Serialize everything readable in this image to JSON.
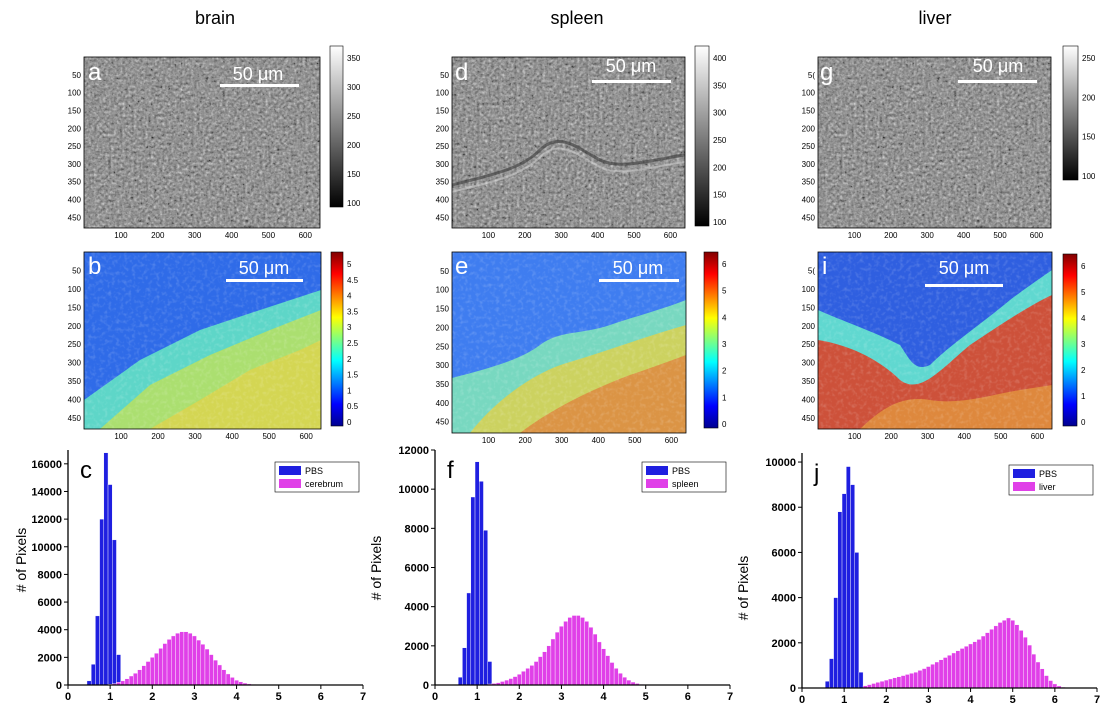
{
  "columns": [
    {
      "title": "brain",
      "top": {
        "panel": "a",
        "scalebar": "50 μm",
        "xticks": [
          "100",
          "200",
          "300",
          "400",
          "500",
          "600"
        ],
        "yticks": [
          "50",
          "100",
          "150",
          "200",
          "250",
          "300",
          "350",
          "400",
          "450"
        ],
        "cbar_ticks": [
          "350",
          "300",
          "250",
          "200",
          "150",
          "100"
        ]
      },
      "mid": {
        "panel": "b",
        "scalebar": "50 μm",
        "xticks": [
          "100",
          "200",
          "300",
          "400",
          "500",
          "600"
        ],
        "yticks": [
          "50",
          "100",
          "150",
          "200",
          "250",
          "300",
          "350",
          "400",
          "450"
        ],
        "cbar_ticks": [
          "5",
          "4.5",
          "4",
          "3.5",
          "3",
          "2.5",
          "2",
          "1.5",
          "1",
          "0.5",
          "0"
        ]
      }
    },
    {
      "title": "spleen",
      "top": {
        "panel": "d",
        "scalebar": "50 μm",
        "xticks": [
          "100",
          "200",
          "300",
          "400",
          "500",
          "600"
        ],
        "yticks": [
          "50",
          "100",
          "150",
          "200",
          "250",
          "300",
          "350",
          "400",
          "450"
        ],
        "cbar_ticks": [
          "400",
          "350",
          "300",
          "250",
          "200",
          "150",
          "100"
        ]
      },
      "mid": {
        "panel": "e",
        "scalebar": "50 μm",
        "xticks": [
          "100",
          "200",
          "300",
          "400",
          "500",
          "600"
        ],
        "yticks": [
          "50",
          "100",
          "150",
          "200",
          "250",
          "300",
          "350",
          "400",
          "450"
        ],
        "cbar_ticks": [
          "6",
          "5",
          "4",
          "3",
          "2",
          "1",
          "0"
        ]
      }
    },
    {
      "title": "liver",
      "top": {
        "panel": "g",
        "scalebar": "50 μm",
        "xticks": [
          "100",
          "200",
          "300",
          "400",
          "500",
          "600"
        ],
        "yticks": [
          "5(",
          "100",
          "150",
          "200",
          "250",
          "300",
          "350",
          "400",
          "450"
        ],
        "cbar_ticks": [
          "250",
          "200",
          "150",
          "100"
        ]
      },
      "mid": {
        "panel": "i",
        "scalebar": "50 μm",
        "xticks": [
          "100",
          "200",
          "300",
          "400",
          "500",
          "600"
        ],
        "yticks": [
          "5(",
          "100",
          "150",
          "200",
          "250",
          "300",
          "350",
          "400",
          "450"
        ],
        "cbar_ticks": [
          "6",
          "5",
          "4",
          "3",
          "2",
          "1",
          "0"
        ]
      }
    }
  ],
  "colors": {
    "pbs": "#1f1fe0",
    "tissue": "#e040e8"
  },
  "chart_data": [
    {
      "type": "bar",
      "panel": "c",
      "ylabel": "# of Pixels",
      "xlim": [
        0,
        7
      ],
      "ylim": [
        0,
        17000
      ],
      "xticks": [
        "0",
        "1",
        "2",
        "3",
        "4",
        "5",
        "6",
        "7"
      ],
      "yticks": [
        "0",
        "2000",
        "4000",
        "6000",
        "8000",
        "10000",
        "12000",
        "14000",
        "16000"
      ],
      "legend": "top-right",
      "series": [
        {
          "name": "PBS",
          "x": [
            0.5,
            0.6,
            0.7,
            0.8,
            0.9,
            1.0,
            1.1,
            1.2
          ],
          "values": [
            300,
            1500,
            5000,
            12000,
            16800,
            14500,
            10500,
            2200
          ]
        },
        {
          "name": "cerebrum",
          "x": [
            1.0,
            1.1,
            1.2,
            1.3,
            1.4,
            1.5,
            1.6,
            1.7,
            1.8,
            1.9,
            2.0,
            2.1,
            2.2,
            2.3,
            2.4,
            2.5,
            2.6,
            2.7,
            2.8,
            2.9,
            3.0,
            3.1,
            3.2,
            3.3,
            3.4,
            3.5,
            3.6,
            3.7,
            3.8,
            3.9,
            4.0,
            4.1,
            4.2,
            4.3,
            4.4,
            4.5
          ],
          "values": [
            50,
            100,
            200,
            300,
            450,
            650,
            850,
            1100,
            1400,
            1700,
            2000,
            2300,
            2650,
            3000,
            3300,
            3550,
            3750,
            3850,
            3850,
            3750,
            3550,
            3250,
            2950,
            2600,
            2200,
            1800,
            1450,
            1100,
            800,
            550,
            350,
            230,
            140,
            80,
            40,
            20
          ]
        }
      ]
    },
    {
      "type": "bar",
      "panel": "f",
      "ylabel": "# of Pixels",
      "xlim": [
        0,
        7
      ],
      "ylim": [
        0,
        12000
      ],
      "xticks": [
        "0",
        "1",
        "2",
        "3",
        "4",
        "5",
        "6",
        "7"
      ],
      "yticks": [
        "0",
        "2000",
        "4000",
        "6000",
        "8000",
        "10000",
        "12000"
      ],
      "legend": "top-right",
      "series": [
        {
          "name": "PBS",
          "x": [
            0.6,
            0.7,
            0.8,
            0.9,
            1.0,
            1.1,
            1.2,
            1.3
          ],
          "values": [
            400,
            1900,
            4700,
            9600,
            11400,
            10400,
            7900,
            1200
          ]
        },
        {
          "name": "spleen",
          "x": [
            1.3,
            1.4,
            1.5,
            1.6,
            1.7,
            1.8,
            1.9,
            2.0,
            2.1,
            2.2,
            2.3,
            2.4,
            2.5,
            2.6,
            2.7,
            2.8,
            2.9,
            3.0,
            3.1,
            3.2,
            3.3,
            3.4,
            3.5,
            3.6,
            3.7,
            3.8,
            3.9,
            4.0,
            4.1,
            4.2,
            4.3,
            4.4,
            4.5,
            4.6,
            4.7,
            4.8,
            4.9
          ],
          "values": [
            50,
            80,
            120,
            180,
            250,
            330,
            430,
            550,
            700,
            850,
            1000,
            1200,
            1450,
            1700,
            2000,
            2350,
            2700,
            3000,
            3250,
            3450,
            3550,
            3550,
            3450,
            3250,
            2950,
            2600,
            2200,
            1850,
            1500,
            1150,
            850,
            600,
            400,
            250,
            150,
            80,
            40
          ]
        }
      ]
    },
    {
      "type": "bar",
      "panel": "j",
      "ylabel": "# of Pixels",
      "xlim": [
        0,
        7
      ],
      "ylim": [
        0,
        10400
      ],
      "xticks": [
        "0",
        "1",
        "2",
        "3",
        "4",
        "5",
        "6",
        "7"
      ],
      "yticks": [
        "0",
        "2000",
        "4000",
        "6000",
        "8000",
        "10000"
      ],
      "legend": "top-right",
      "series": [
        {
          "name": "PBS",
          "x": [
            0.6,
            0.7,
            0.8,
            0.9,
            1.0,
            1.1,
            1.2,
            1.3,
            1.4
          ],
          "values": [
            300,
            1300,
            4000,
            7800,
            8600,
            9800,
            9000,
            6000,
            700
          ]
        },
        {
          "name": "liver",
          "x": [
            1.5,
            1.6,
            1.7,
            1.8,
            1.9,
            2.0,
            2.1,
            2.2,
            2.3,
            2.4,
            2.5,
            2.6,
            2.7,
            2.8,
            2.9,
            3.0,
            3.1,
            3.2,
            3.3,
            3.4,
            3.5,
            3.6,
            3.7,
            3.8,
            3.9,
            4.0,
            4.1,
            4.2,
            4.3,
            4.4,
            4.5,
            4.6,
            4.7,
            4.8,
            4.9,
            5.0,
            5.1,
            5.2,
            5.3,
            5.4,
            5.5,
            5.6,
            5.7,
            5.8,
            5.9,
            6.0,
            6.1,
            6.2
          ],
          "values": [
            100,
            150,
            200,
            250,
            300,
            350,
            400,
            450,
            500,
            550,
            600,
            650,
            700,
            780,
            860,
            950,
            1050,
            1150,
            1250,
            1350,
            1450,
            1550,
            1650,
            1750,
            1850,
            1950,
            2050,
            2150,
            2300,
            2450,
            2600,
            2750,
            2900,
            3000,
            3100,
            3000,
            2800,
            2550,
            2250,
            1900,
            1500,
            1150,
            850,
            550,
            330,
            180,
            90,
            40
          ]
        }
      ]
    }
  ]
}
